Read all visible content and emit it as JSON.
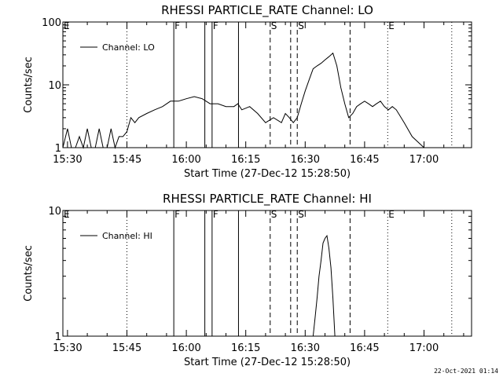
{
  "footer_timestamp": "22-Oct-2021 01:14",
  "chart_data": [
    {
      "type": "line",
      "title": "RHESSI PARTICLE_RATE Channel: LO",
      "xlabel": "Start Time (27-Dec-12 15:28:50)",
      "ylabel": "Counts/sec",
      "y_scale": "log",
      "ylim": [
        1,
        100
      ],
      "y_tick_labels": [
        "1",
        "10",
        "100"
      ],
      "xlim": [
        "15:28:50",
        "17:12:00"
      ],
      "x_tick_labels": [
        "15:30",
        "15:45",
        "16:00",
        "16:15",
        "16:30",
        "16:45",
        "17:00"
      ],
      "legend": "top-left",
      "series": [
        {
          "name": "Channel: LO",
          "color": "#000000",
          "x": [
            "15:28:50",
            "15:30",
            "15:31",
            "15:32",
            "15:33",
            "15:34",
            "15:35",
            "15:36",
            "15:37",
            "15:38",
            "15:39",
            "15:40",
            "15:41",
            "15:42",
            "15:43",
            "15:44",
            "15:45",
            "15:46",
            "15:47",
            "15:48",
            "15:50",
            "15:52",
            "15:54",
            "15:56",
            "15:58",
            "16:00",
            "16:02",
            "16:04",
            "16:06",
            "16:08",
            "16:10",
            "16:12",
            "16:13",
            "16:14",
            "16:16",
            "16:18",
            "16:20",
            "16:22",
            "16:24",
            "16:25",
            "16:26",
            "16:27",
            "16:28",
            "16:29",
            "16:30",
            "16:31",
            "16:32",
            "16:33",
            "16:34",
            "16:35",
            "16:36",
            "16:37",
            "16:38",
            "16:39",
            "16:40",
            "16:41",
            "16:42",
            "16:43",
            "16:44",
            "16:45",
            "16:46",
            "16:47",
            "16:48",
            "16:49",
            "16:50",
            "16:51",
            "16:52",
            "16:53",
            "16:55",
            "16:57",
            "17:00",
            "17:05",
            "17:10"
          ],
          "values": [
            1.0,
            2.0,
            1.0,
            1.0,
            1.5,
            1.0,
            2.0,
            1.0,
            1.0,
            2.0,
            1.0,
            1.0,
            2.0,
            1.0,
            1.5,
            1.5,
            1.8,
            3.0,
            2.5,
            3.0,
            3.5,
            4.0,
            4.5,
            5.5,
            5.5,
            6.0,
            6.5,
            6.0,
            5.0,
            5.0,
            4.5,
            4.5,
            5.0,
            4.0,
            4.5,
            3.5,
            2.5,
            3.0,
            2.5,
            3.5,
            3.0,
            2.5,
            3.0,
            5.0,
            8.0,
            12.0,
            18.0,
            20.0,
            22.0,
            25.0,
            28.0,
            32.0,
            20.0,
            9.0,
            5.0,
            3.0,
            3.5,
            4.5,
            5.0,
            5.5,
            5.0,
            4.5,
            5.0,
            5.5,
            4.5,
            4.0,
            4.5,
            4.0,
            2.5,
            1.5,
            1.0,
            1.0,
            1.0
          ]
        }
      ],
      "vertical_markers": [
        {
          "time": "15:45:00",
          "style": "dotted"
        },
        {
          "time": "15:56:50",
          "style": "solid"
        },
        {
          "time": "16:04:40",
          "style": "solid"
        },
        {
          "time": "16:06:30",
          "style": "solid"
        },
        {
          "time": "16:13:10",
          "style": "solid"
        },
        {
          "time": "16:21:10",
          "style": "dashed"
        },
        {
          "time": "16:26:20",
          "style": "dashed"
        },
        {
          "time": "16:28:00",
          "style": "dashed"
        },
        {
          "time": "16:41:20",
          "style": "dashed"
        },
        {
          "time": "16:50:50",
          "style": "dotted"
        },
        {
          "time": "17:07:00",
          "style": "dotted"
        }
      ],
      "flags": [
        {
          "label": "E",
          "time": "15:28:50"
        },
        {
          "label": "F",
          "time": "15:56:50"
        },
        {
          "label": "F",
          "time": "16:06:30"
        },
        {
          "label": "S",
          "time": "16:21:10"
        },
        {
          "label": "S",
          "time": "16:28:00"
        },
        {
          "label": "E",
          "time": "16:50:50"
        }
      ]
    },
    {
      "type": "line",
      "title": "RHESSI PARTICLE_RATE Channel: HI",
      "xlabel": "Start Time (27-Dec-12 15:28:50)",
      "ylabel": "Counts/sec",
      "y_scale": "log",
      "ylim": [
        1,
        10
      ],
      "y_tick_labels": [
        "1",
        "10"
      ],
      "xlim": [
        "15:28:50",
        "17:12:00"
      ],
      "x_tick_labels": [
        "15:30",
        "15:45",
        "16:00",
        "16:15",
        "16:30",
        "16:45",
        "17:00"
      ],
      "legend": "top-left",
      "series": [
        {
          "name": "Channel: HI",
          "color": "#000000",
          "x": [
            "16:32:00",
            "16:32:30",
            "16:33:00",
            "16:33:30",
            "16:34:00",
            "16:34:30",
            "16:35:00",
            "16:35:30",
            "16:36:00",
            "16:36:30",
            "16:37:00",
            "16:37:30"
          ],
          "values": [
            1.0,
            1.4,
            2.0,
            3.0,
            4.0,
            5.5,
            6.0,
            6.3,
            5.0,
            3.5,
            2.0,
            1.0
          ]
        }
      ],
      "vertical_markers": [
        {
          "time": "15:45:00",
          "style": "dotted"
        },
        {
          "time": "15:56:50",
          "style": "solid"
        },
        {
          "time": "16:04:40",
          "style": "solid"
        },
        {
          "time": "16:06:30",
          "style": "solid"
        },
        {
          "time": "16:13:10",
          "style": "solid"
        },
        {
          "time": "16:21:10",
          "style": "dashed"
        },
        {
          "time": "16:26:20",
          "style": "dashed"
        },
        {
          "time": "16:28:00",
          "style": "dashed"
        },
        {
          "time": "16:41:20",
          "style": "dashed"
        },
        {
          "time": "16:50:50",
          "style": "dotted"
        },
        {
          "time": "17:07:00",
          "style": "dotted"
        }
      ],
      "flags": [
        {
          "label": "E",
          "time": "15:28:50"
        },
        {
          "label": "F",
          "time": "15:56:50"
        },
        {
          "label": "F",
          "time": "16:06:30"
        },
        {
          "label": "S",
          "time": "16:21:10"
        },
        {
          "label": "S",
          "time": "16:28:00"
        },
        {
          "label": "E",
          "time": "16:50:50"
        }
      ]
    }
  ]
}
